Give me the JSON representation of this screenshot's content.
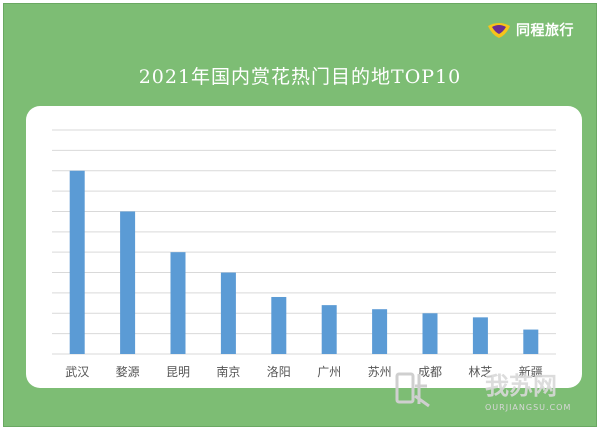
{
  "brand": {
    "name": "同程旅行",
    "logo_icon": "tongcheng-logo-icon",
    "logo_color": "#f7c31a",
    "logo_accent": "#6b2c91"
  },
  "chart_data": {
    "type": "bar",
    "title": "2021年国内赏花热门目的地TOP10",
    "xlabel": "",
    "ylabel": "",
    "categories": [
      "武汉",
      "婺源",
      "昆明",
      "南京",
      "洛阳",
      "广州",
      "苏州",
      "成都",
      "林芝",
      "新疆"
    ],
    "values": [
      70,
      60,
      50,
      45,
      39,
      37,
      36,
      35,
      34,
      31
    ],
    "ylim": [
      25,
      80
    ],
    "grid": true,
    "legend": "none",
    "bar_color": "#5b9bd5",
    "grid_color": "#d9d9d9"
  },
  "watermark": {
    "text": "我苏网",
    "subtext": "OURJIANGSU.COM",
    "icon": "ourjiangsu-logo-icon"
  }
}
